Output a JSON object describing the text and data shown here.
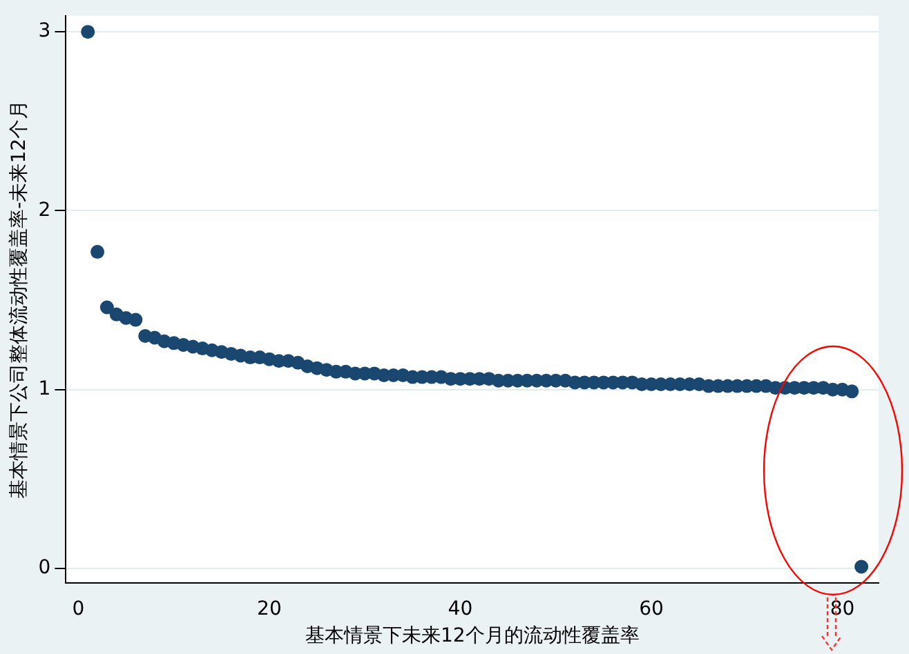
{
  "chart_data": {
    "type": "scatter",
    "xlabel": "基本情景下未来12个月的流动性覆盖率",
    "ylabel": "基本情景下公司整体流动性覆盖率-未来12个月",
    "x": [
      1,
      2,
      3,
      4,
      5,
      6,
      7,
      8,
      9,
      10,
      11,
      12,
      13,
      14,
      15,
      16,
      17,
      18,
      19,
      20,
      21,
      22,
      23,
      24,
      25,
      26,
      27,
      28,
      29,
      30,
      31,
      32,
      33,
      34,
      35,
      36,
      37,
      38,
      39,
      40,
      41,
      42,
      43,
      44,
      45,
      46,
      47,
      48,
      49,
      50,
      51,
      52,
      53,
      54,
      55,
      56,
      57,
      58,
      59,
      60,
      61,
      62,
      63,
      64,
      65,
      66,
      67,
      68,
      69,
      70,
      71,
      72,
      73,
      74,
      75,
      76,
      77,
      78,
      79,
      80,
      81,
      82
    ],
    "series": [
      {
        "color": "#1a476f",
        "values": [
          3.0,
          1.77,
          1.46,
          1.42,
          1.4,
          1.39,
          1.3,
          1.29,
          1.27,
          1.26,
          1.25,
          1.24,
          1.23,
          1.22,
          1.21,
          1.2,
          1.19,
          1.18,
          1.18,
          1.17,
          1.16,
          1.16,
          1.15,
          1.13,
          1.12,
          1.11,
          1.1,
          1.1,
          1.09,
          1.09,
          1.09,
          1.08,
          1.08,
          1.08,
          1.07,
          1.07,
          1.07,
          1.07,
          1.06,
          1.06,
          1.06,
          1.06,
          1.06,
          1.05,
          1.05,
          1.05,
          1.05,
          1.05,
          1.05,
          1.05,
          1.05,
          1.04,
          1.04,
          1.04,
          1.04,
          1.04,
          1.04,
          1.04,
          1.03,
          1.03,
          1.03,
          1.03,
          1.03,
          1.03,
          1.03,
          1.02,
          1.02,
          1.02,
          1.02,
          1.02,
          1.02,
          1.02,
          1.01,
          1.01,
          1.01,
          1.01,
          1.01,
          1.01,
          1.0,
          1.0,
          0.99,
          0.01
        ]
      }
    ],
    "xlim": [
      -1.3,
      83.8
    ],
    "xticks": [
      0,
      20,
      40,
      60,
      80
    ],
    "ylim": [
      -0.08,
      3.09
    ],
    "yticks": [
      0,
      1,
      2,
      3
    ],
    "grid": "y",
    "marker": "circle",
    "legend": false
  }
}
